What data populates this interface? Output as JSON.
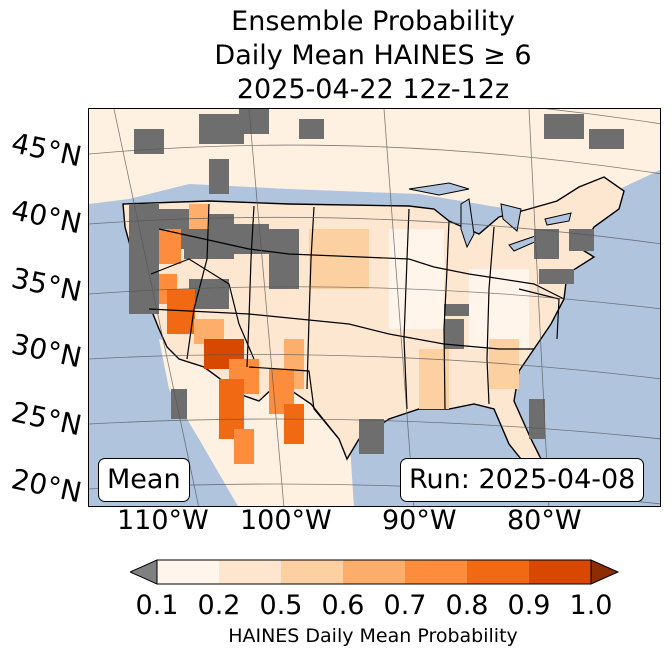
{
  "title": {
    "line1": "Ensemble Probability",
    "line2": "Daily Mean HAINES ≥ 6",
    "line3": "2025-04-22 12z-12z"
  },
  "map": {
    "latitude_labels": [
      "45°N",
      "40°N",
      "35°N",
      "30°N",
      "25°N",
      "20°N"
    ],
    "longitude_labels": [
      "110°W",
      "100°W",
      "90°W",
      "80°W"
    ],
    "stat_label": "Mean",
    "run_label": "Run: 2025-04-08",
    "colors": {
      "ocean": "#b0c4de",
      "missing": "#6e6e6e",
      "bin_0.1_0.2": "#fff5eb",
      "bin_0.2_0.5": "#fee6ce",
      "bin_0.5_0.6": "#fdd0a2",
      "bin_0.6_0.7": "#fdae6b",
      "bin_0.7_0.8": "#fd8d3c",
      "bin_0.8_0.9": "#f16913",
      "bin_0.9_1.0": "#d94801",
      "over": "#8c2d04",
      "under": "#808080"
    }
  },
  "colorbar": {
    "ticks": [
      "0.1",
      "0.2",
      "0.5",
      "0.6",
      "0.7",
      "0.8",
      "0.9",
      "1.0"
    ],
    "label": "HAINES Daily Mean Probability"
  }
}
